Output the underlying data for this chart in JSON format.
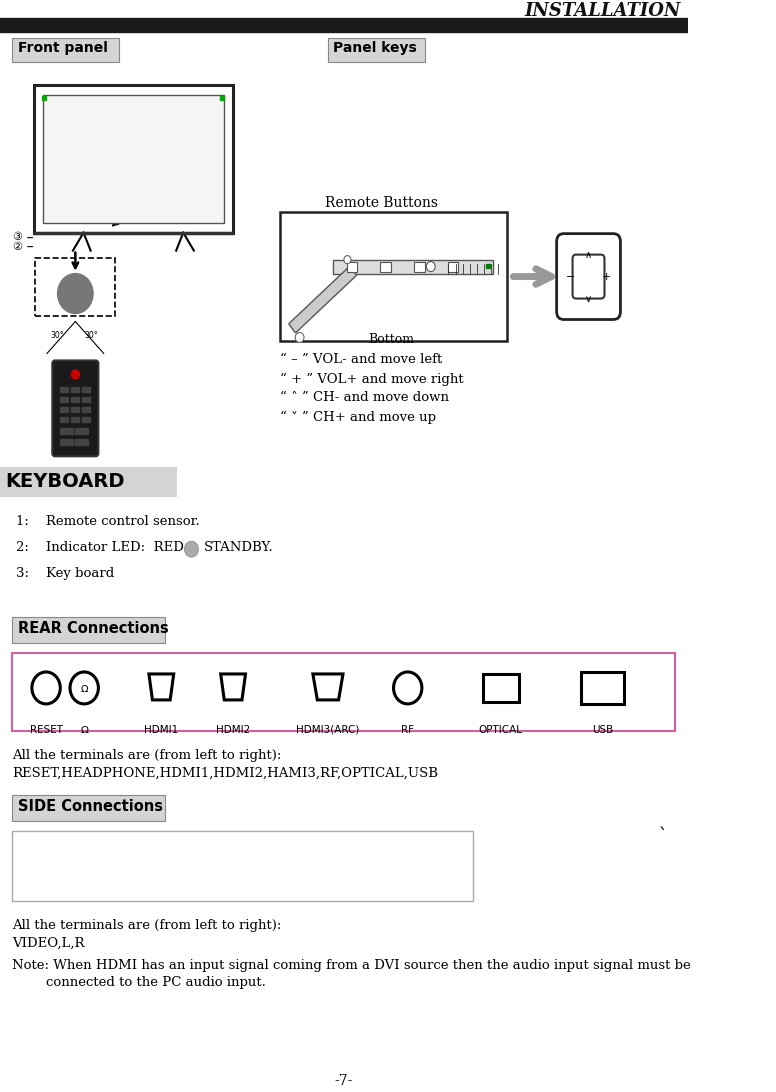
{
  "title": "INSTALLATION",
  "front_panel_label": "Front panel",
  "panel_keys_label": "Panel keys",
  "keyboard_label": "KEYBOARD",
  "rear_label": "REAR Connections",
  "side_label": "SIDE Connections",
  "remote_buttons_label": "Remote Buttons",
  "bottom_label": "Bottom",
  "bullet_lines": [
    "“ – ” VOL- and move left",
    "“ + ” VOL+ and move right",
    "“ ˄ ” CH- and move down",
    "“ ˅ ” CH+ and move up"
  ],
  "keyboard_item1": "1:    Remote control sensor.",
  "keyboard_item2_pre": "2:    Indicator LED:  RED",
  "keyboard_item2_post": "STANDBY.",
  "keyboard_item3": "3:    Key board",
  "rear_terminals_line1": "All the terminals are (from left to right):",
  "rear_terminals_line2": "RESET,HEADPHONE,HDMI1,HDMI2,HAMI3,RF,OPTICAL,USB",
  "side_terminals_line1": "All the terminals are (from left to right):",
  "side_terminals_line2": "VIDEO,L,R",
  "note_line1": "Note: When HDMI has an input signal coming from a DVI source then the audio input signal must be",
  "note_line2": "        connected to the PC audio input.",
  "rear_connector_labels": [
    "RESET",
    "Ω",
    "HDMI1",
    "HDMI2",
    "HDMI3(ARC)",
    "RF",
    "OPTICAL",
    "USB"
  ],
  "page_number": "-7-",
  "bg_color": "#ffffff",
  "header_bar_color": "#1a1a1a",
  "section_bg_color": "#d4d4d4",
  "rear_box_border": "#d060a0",
  "side_box_border": "#aaaaaa",
  "header_title_color": "#111111"
}
